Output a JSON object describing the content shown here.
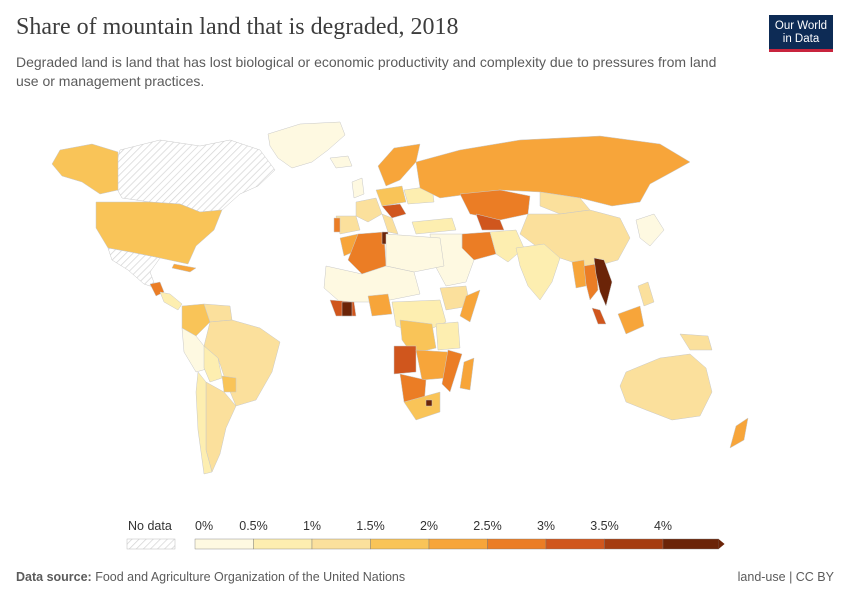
{
  "title": "Share of mountain land that is degraded, 2018",
  "subtitle": "Degraded land is land that has lost biological or economic productivity and complexity due to pressures from land use or management practices.",
  "logo": {
    "line1": "Our World",
    "line2": "in Data"
  },
  "legend": {
    "no_data_label": "No data",
    "ticks": [
      "0%",
      "0.5%",
      "1%",
      "1.5%",
      "2%",
      "2.5%",
      "3%",
      "3.5%",
      "4%"
    ],
    "bins": [
      {
        "from": 0,
        "to": 0.5,
        "color": "#fef9e1"
      },
      {
        "from": 0.5,
        "to": 1,
        "color": "#fdeeb0"
      },
      {
        "from": 1,
        "to": 1.5,
        "color": "#fbe09c"
      },
      {
        "from": 1.5,
        "to": 2,
        "color": "#f9c458"
      },
      {
        "from": 2,
        "to": 2.5,
        "color": "#f7a53a"
      },
      {
        "from": 2.5,
        "to": 3,
        "color": "#eb7d25"
      },
      {
        "from": 3,
        "to": 3.5,
        "color": "#d0561d"
      },
      {
        "from": 3.5,
        "to": 4,
        "color": "#a53c10"
      },
      {
        "from": 4,
        "to": 4.5,
        "color": "#6b2408"
      }
    ]
  },
  "footer": {
    "source_label": "Data source:",
    "source_text": "Food and Agriculture Organization of the United Nations",
    "right_text": "land-use | CC BY"
  }
}
